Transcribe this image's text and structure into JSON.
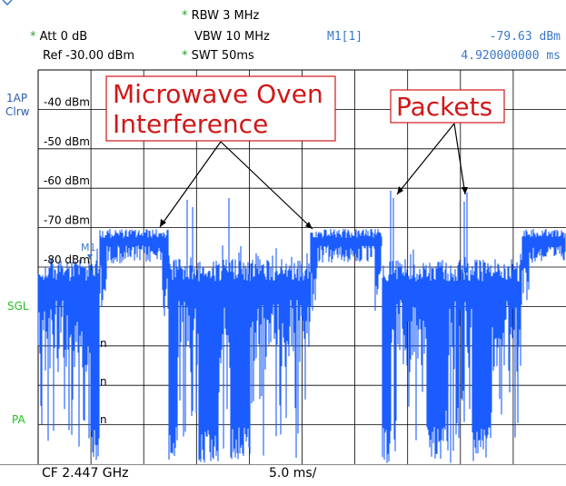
{
  "header": {
    "rbw": "RBW 3 MHz",
    "att": "Att 0 dB",
    "vbw": "VBW 10 MHz",
    "ref": "Ref -30.00 dBm",
    "swt": "SWT 50ms",
    "marker_name": "M1[1]",
    "marker_level": "-79.63 dBm",
    "marker_time": "4.920000000 ms"
  },
  "side": {
    "trace_label": "1AP",
    "trace_mode": "Clrw",
    "sgl": "SGL",
    "pa": "PA"
  },
  "marker_tag": "M1",
  "y_ticks": [
    "-40 dBm",
    "-50 dBm",
    "-60 dBm",
    "-70 dBm",
    "-80 dBm"
  ],
  "annotations": {
    "microwave": [
      "Microwave Oven",
      "Interference"
    ],
    "packets": "Packets"
  },
  "footer": {
    "cf": "CF 2.447 GHz",
    "span": "5.0 ms/"
  },
  "colors": {
    "trace": "#1a5cff",
    "grid": "#000000",
    "annotation": "#d01818",
    "marker": "#3a78c9",
    "side_blue": "#2a5db0",
    "side_green": "#21c21f"
  }
}
